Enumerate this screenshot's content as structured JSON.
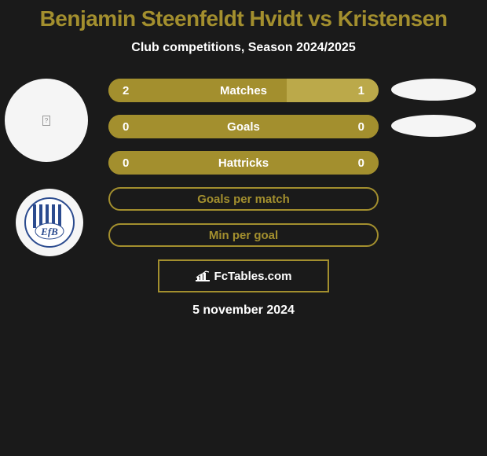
{
  "title_color": "#a38f2e",
  "title": "Benjamin Steenfeldt Hvidt vs Kristensen",
  "subtitle": "Club competitions, Season 2024/2025",
  "accent_color": "#a38f2e",
  "accent_light": "#bba94a",
  "bg_color": "#1a1a1a",
  "text_color": "#ffffff",
  "placeholder_bg": "#f5f5f5",
  "rows": [
    {
      "label": "Matches",
      "left": "2",
      "right": "1",
      "left_pct": 66,
      "right_pct": 34,
      "type": "split"
    },
    {
      "label": "Goals",
      "left": "0",
      "right": "0",
      "left_pct": 100,
      "right_pct": 0,
      "type": "split"
    },
    {
      "label": "Hattricks",
      "left": "0",
      "right": "0",
      "left_pct": 100,
      "right_pct": 0,
      "type": "split"
    },
    {
      "label": "Goals per match",
      "type": "single"
    },
    {
      "label": "Min per goal",
      "type": "single"
    }
  ],
  "brand": "FcTables.com",
  "date": "5 november 2024",
  "player_left_icon": "?",
  "club_logo_text": "EfB"
}
